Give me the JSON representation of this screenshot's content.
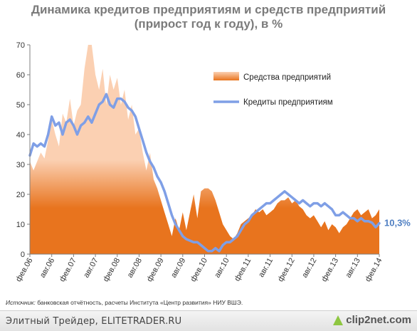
{
  "title_line1": "Динамика кредитов предприятиям и средств предприятий",
  "title_line2": "(прирост год к году), в %",
  "source_label": "Источник:",
  "source_text": " банковская отчётность, расчеты Института «Центр развития» НИУ ВШЭ.",
  "footer_text": "Элитный Трейдер, ELITETRADER.RU",
  "watermark_text": "clip2net.com",
  "chart_data": {
    "type": "line",
    "ylim": [
      0,
      70
    ],
    "yticks": [
      0,
      10,
      20,
      30,
      40,
      50,
      60,
      70
    ],
    "xlim": [
      0,
      96
    ],
    "x_tick_labels": [
      "фев.06",
      "авг.06",
      "фев.07",
      "авг.07",
      "фев.08",
      "авг.08",
      "фев.09",
      "авг.09",
      "фев.10",
      "авг.10",
      "фев.11",
      "авг.11",
      "фев.12",
      "авг.12",
      "фев.13",
      "авг.13",
      "фев.14"
    ],
    "x_tick_positions": [
      0,
      6,
      12,
      18,
      24,
      30,
      36,
      42,
      48,
      54,
      60,
      66,
      72,
      78,
      84,
      90,
      96
    ],
    "legend": [
      "Средства предприятий",
      "Кредиты предприятиям"
    ],
    "end_label": "10,3%",
    "colors": {
      "deposits_light": "#fbd0b2",
      "deposits_dark": "#e8741e",
      "credits": "#7f9fe6",
      "end_label": "#4f7fc2",
      "axis": "#7f7f7f"
    },
    "series": [
      {
        "name": "Средства предприятий",
        "type": "area",
        "points": [
          [
            0,
            31
          ],
          [
            1,
            28
          ],
          [
            2,
            31
          ],
          [
            3,
            34
          ],
          [
            4,
            32
          ],
          [
            5,
            38
          ],
          [
            6,
            45
          ],
          [
            7,
            40
          ],
          [
            8,
            36
          ],
          [
            9,
            47
          ],
          [
            10,
            44
          ],
          [
            11,
            52
          ],
          [
            12,
            43
          ],
          [
            13,
            48
          ],
          [
            14,
            50
          ],
          [
            15,
            62
          ],
          [
            16,
            72
          ],
          [
            17,
            72
          ],
          [
            18,
            60
          ],
          [
            19,
            55
          ],
          [
            20,
            62
          ],
          [
            21,
            50
          ],
          [
            22,
            60
          ],
          [
            23,
            55
          ],
          [
            24,
            59
          ],
          [
            25,
            50
          ],
          [
            26,
            55
          ],
          [
            27,
            45
          ],
          [
            28,
            50
          ],
          [
            29,
            40
          ],
          [
            30,
            42
          ],
          [
            31,
            34
          ],
          [
            32,
            28
          ],
          [
            33,
            34
          ],
          [
            34,
            25
          ],
          [
            35,
            22
          ],
          [
            36,
            18
          ],
          [
            37,
            14
          ],
          [
            38,
            10
          ],
          [
            39,
            6
          ],
          [
            40,
            12
          ],
          [
            41,
            8
          ],
          [
            42,
            14
          ],
          [
            43,
            8
          ],
          [
            44,
            14
          ],
          [
            45,
            20
          ],
          [
            46,
            12
          ],
          [
            47,
            21
          ],
          [
            48,
            22
          ],
          [
            49,
            22
          ],
          [
            50,
            21
          ],
          [
            51,
            18
          ],
          [
            52,
            14
          ],
          [
            53,
            10
          ],
          [
            54,
            8
          ],
          [
            55,
            6
          ],
          [
            56,
            5
          ],
          [
            57,
            7
          ],
          [
            58,
            10
          ],
          [
            59,
            11
          ],
          [
            60,
            12
          ],
          [
            61,
            13
          ],
          [
            62,
            15
          ],
          [
            63,
            14
          ],
          [
            64,
            15
          ],
          [
            65,
            13
          ],
          [
            66,
            14
          ],
          [
            67,
            15
          ],
          [
            68,
            17
          ],
          [
            69,
            18
          ],
          [
            70,
            18
          ],
          [
            71,
            19
          ],
          [
            72,
            17
          ],
          [
            73,
            18
          ],
          [
            74,
            16
          ],
          [
            75,
            15
          ],
          [
            76,
            13
          ],
          [
            77,
            12
          ],
          [
            78,
            13
          ],
          [
            79,
            11
          ],
          [
            80,
            9
          ],
          [
            81,
            11
          ],
          [
            82,
            8
          ],
          [
            83,
            10
          ],
          [
            84,
            9
          ],
          [
            85,
            7
          ],
          [
            86,
            9
          ],
          [
            87,
            10
          ],
          [
            88,
            12
          ],
          [
            89,
            14
          ],
          [
            90,
            15
          ],
          [
            91,
            13
          ],
          [
            92,
            14
          ],
          [
            93,
            15
          ],
          [
            94,
            12
          ],
          [
            95,
            13
          ],
          [
            96,
            15
          ]
        ]
      },
      {
        "name": "Кредиты предприятиям",
        "type": "line",
        "points": [
          [
            0,
            33
          ],
          [
            1,
            37
          ],
          [
            2,
            36
          ],
          [
            3,
            37
          ],
          [
            4,
            36
          ],
          [
            5,
            40
          ],
          [
            6,
            46
          ],
          [
            7,
            43
          ],
          [
            8,
            44
          ],
          [
            9,
            40
          ],
          [
            10,
            44
          ],
          [
            11,
            45
          ],
          [
            12,
            43
          ],
          [
            13,
            40
          ],
          [
            14,
            43
          ],
          [
            15,
            44
          ],
          [
            16,
            46
          ],
          [
            17,
            44
          ],
          [
            18,
            47
          ],
          [
            19,
            50
          ],
          [
            20,
            51
          ],
          [
            21,
            53.5
          ],
          [
            22,
            50
          ],
          [
            23,
            49
          ],
          [
            24,
            52
          ],
          [
            25,
            52
          ],
          [
            26,
            51
          ],
          [
            27,
            49
          ],
          [
            28,
            48
          ],
          [
            29,
            46
          ],
          [
            30,
            42
          ],
          [
            31,
            38
          ],
          [
            32,
            34
          ],
          [
            33,
            31
          ],
          [
            34,
            29
          ],
          [
            35,
            26
          ],
          [
            36,
            24
          ],
          [
            37,
            21
          ],
          [
            38,
            17
          ],
          [
            39,
            13
          ],
          [
            40,
            10
          ],
          [
            41,
            8
          ],
          [
            42,
            6
          ],
          [
            43,
            5
          ],
          [
            44,
            4.5
          ],
          [
            45,
            4
          ],
          [
            46,
            4
          ],
          [
            47,
            3
          ],
          [
            48,
            2
          ],
          [
            49,
            1
          ],
          [
            50,
            1
          ],
          [
            51,
            2
          ],
          [
            52,
            1
          ],
          [
            53,
            3
          ],
          [
            54,
            4
          ],
          [
            55,
            4
          ],
          [
            56,
            5
          ],
          [
            57,
            6
          ],
          [
            58,
            8
          ],
          [
            59,
            10
          ],
          [
            60,
            11
          ],
          [
            61,
            13
          ],
          [
            62,
            14
          ],
          [
            63,
            15
          ],
          [
            64,
            16
          ],
          [
            65,
            17
          ],
          [
            66,
            17
          ],
          [
            67,
            18
          ],
          [
            68,
            19
          ],
          [
            69,
            20
          ],
          [
            70,
            21
          ],
          [
            71,
            20
          ],
          [
            72,
            19
          ],
          [
            73,
            18
          ],
          [
            74,
            17
          ],
          [
            75,
            18
          ],
          [
            76,
            17
          ],
          [
            77,
            16
          ],
          [
            78,
            17
          ],
          [
            79,
            17
          ],
          [
            80,
            16
          ],
          [
            81,
            17
          ],
          [
            82,
            16
          ],
          [
            83,
            15
          ],
          [
            84,
            13
          ],
          [
            85,
            13
          ],
          [
            86,
            14
          ],
          [
            87,
            13
          ],
          [
            88,
            12
          ],
          [
            89,
            12
          ],
          [
            90,
            11
          ],
          [
            91,
            12
          ],
          [
            92,
            11
          ],
          [
            93,
            11
          ],
          [
            94,
            10.5
          ],
          [
            95,
            9
          ],
          [
            96,
            10.3
          ]
        ]
      }
    ]
  }
}
